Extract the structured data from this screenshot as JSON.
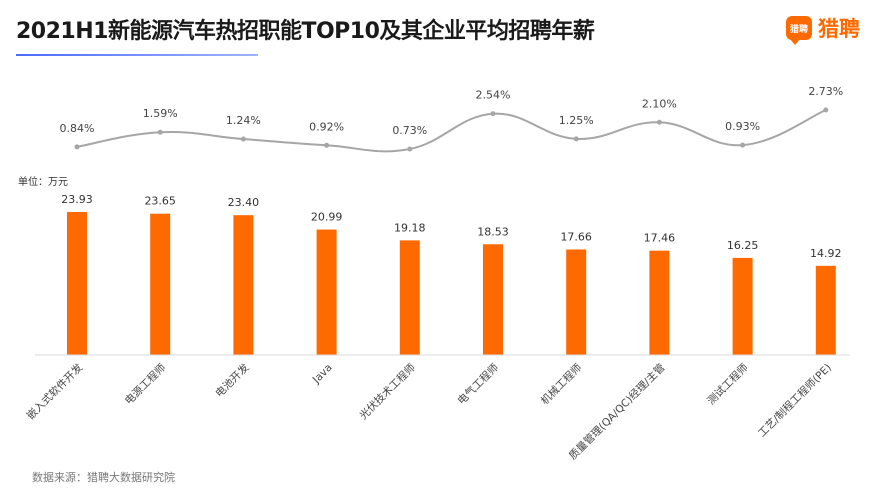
{
  "page": {
    "title": "2021H1新能源汽车热招职能TOP10及其企业平均招聘年薪",
    "logo_text": "猎聘",
    "logo_icon": "liepin-logo-icon",
    "unit_label": "单位：万元",
    "source": "数据来源：猎聘大数据研究院"
  },
  "colors": {
    "bar": "#ff6a00",
    "line": "#a6a6a6",
    "accent": "#4a6cf7"
  },
  "chart_data": [
    {
      "type": "bar",
      "categories": [
        "嵌入式软件开发",
        "电源工程师",
        "电池开发",
        "Java",
        "光伏技术工程师",
        "电气工程师",
        "机械工程师",
        "质量管理(QA/QC)经理/主管",
        "测试工程师",
        "工艺/制程工程师(PE)"
      ],
      "values": [
        23.93,
        23.65,
        23.4,
        20.99,
        19.18,
        18.53,
        17.66,
        17.46,
        16.25,
        14.92
      ],
      "value_labels": [
        "23.93",
        "23.65",
        "23.40",
        "20.99",
        "19.18",
        "18.53",
        "17.66",
        "17.46",
        "16.25",
        "14.92"
      ],
      "ylabel": "单位：万元",
      "ylim": [
        0,
        25
      ]
    },
    {
      "type": "line",
      "categories": [
        "嵌入式软件开发",
        "电源工程师",
        "电池开发",
        "Java",
        "光伏技术工程师",
        "电气工程师",
        "机械工程师",
        "质量管理(QA/QC)经理/主管",
        "测试工程师",
        "工艺/制程工程师(PE)"
      ],
      "values": [
        0.84,
        1.59,
        1.24,
        0.92,
        0.73,
        2.54,
        1.25,
        2.1,
        0.93,
        2.73
      ],
      "value_labels": [
        "0.84%",
        "1.59%",
        "1.24%",
        "0.92%",
        "0.73%",
        "2.54%",
        "1.25%",
        "2.10%",
        "0.93%",
        "2.73%"
      ],
      "smooth": true
    }
  ]
}
